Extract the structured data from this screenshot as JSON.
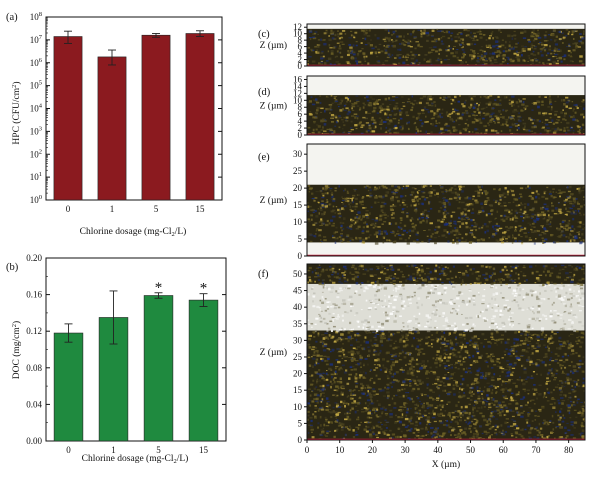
{
  "figure": {
    "panels": {
      "a": "(a)",
      "b": "(b)",
      "c": "(c)",
      "d": "(d)",
      "e": "(e)",
      "f": "(f)"
    }
  },
  "colors": {
    "hpc_bar": "#8b1a1f",
    "doc_bar": "#1f8a3f",
    "baseline": "#c0203a",
    "biofilm_dark": "#2a2614",
    "biofilm_olive": "#6d6126",
    "biofilm_yellow": "#c8ad45",
    "biofilm_blue": "#1b2f7a",
    "biofilm_white": "#f4f4f0"
  },
  "chart_data": [
    {
      "id": "a",
      "type": "bar",
      "yscale": "log",
      "categories": [
        "0",
        "1",
        "5",
        "15"
      ],
      "values": [
        14000000,
        1800000,
        16000000,
        19000000
      ],
      "errors_low": [
        7000000,
        1000000,
        3000000,
        5000000
      ],
      "errors_high": [
        10000000,
        1800000,
        3000000,
        6000000
      ],
      "ylim": [
        1,
        100000000
      ],
      "yticks": [
        1,
        10,
        100,
        1000,
        10000,
        100000,
        1000000,
        10000000,
        100000000
      ],
      "ytick_base": "10",
      "ytick_exps": [
        "0",
        "1",
        "2",
        "3",
        "4",
        "5",
        "6",
        "7",
        "8"
      ],
      "ylabel_main": "HPC (CFU/cm",
      "ylabel_sup": "2",
      "ylabel_end": ")",
      "xlabel_main": "Chlorine dosage (mg-Cl",
      "xlabel_sub": "2",
      "xlabel_end": "/L)"
    },
    {
      "id": "b",
      "type": "bar",
      "categories": [
        "0",
        "1",
        "5",
        "15"
      ],
      "values": [
        0.118,
        0.135,
        0.159,
        0.154
      ],
      "errors": [
        0.01,
        0.029,
        0.003,
        0.007
      ],
      "significance": [
        "",
        "",
        "*",
        "*"
      ],
      "ylim": [
        0.0,
        0.2
      ],
      "yticks": [
        0.0,
        0.04,
        0.08,
        0.12,
        0.16,
        0.2
      ],
      "ytick_labels": [
        "0.00",
        "0.04",
        "0.08",
        "0.12",
        "0.16",
        "0.20"
      ],
      "ylabel_main": "DOC (mg/cm",
      "ylabel_sup": "2",
      "ylabel_end": ")",
      "xlabel_main": "Chlorine dosage (mg-Cl",
      "xlabel_sub": "2",
      "xlabel_end": "/L)"
    },
    {
      "id": "c",
      "type": "heatmap",
      "ylabel": "Z (µm)",
      "ylim": [
        0,
        13
      ],
      "yticks": [
        0,
        2,
        4,
        6,
        8,
        10,
        12
      ],
      "xlim": [
        0,
        85
      ],
      "layers": [
        {
          "from": 0,
          "to": 11.5,
          "tone": "dark"
        }
      ]
    },
    {
      "id": "d",
      "type": "heatmap",
      "ylabel": "Z (µm)",
      "ylim": [
        0,
        17
      ],
      "yticks": [
        0,
        2,
        4,
        6,
        8,
        10,
        12,
        14,
        16
      ],
      "xlim": [
        0,
        85
      ],
      "layers": [
        {
          "from": 0,
          "to": 11.5,
          "tone": "dark"
        }
      ]
    },
    {
      "id": "e",
      "type": "heatmap",
      "ylabel": "Z (µm)",
      "ylim": [
        0,
        33
      ],
      "yticks": [
        0,
        5,
        10,
        15,
        20,
        25,
        30
      ],
      "xlim": [
        0,
        85
      ],
      "layers": [
        {
          "from": 4,
          "to": 21,
          "tone": "dark"
        }
      ]
    },
    {
      "id": "f",
      "type": "heatmap",
      "ylabel": "Z (µm)",
      "ylim": [
        0,
        53
      ],
      "yticks": [
        0,
        5,
        10,
        15,
        20,
        25,
        30,
        35,
        40,
        45,
        50
      ],
      "xlim": [
        0,
        85
      ],
      "xticks": [
        0,
        10,
        20,
        30,
        40,
        50,
        60,
        70,
        80
      ],
      "xlabel": "X (µm)",
      "layers": [
        {
          "from": 0,
          "to": 33,
          "tone": "dark"
        },
        {
          "from": 33,
          "to": 47,
          "tone": "white"
        },
        {
          "from": 47,
          "to": 53,
          "tone": "dark"
        }
      ]
    }
  ]
}
